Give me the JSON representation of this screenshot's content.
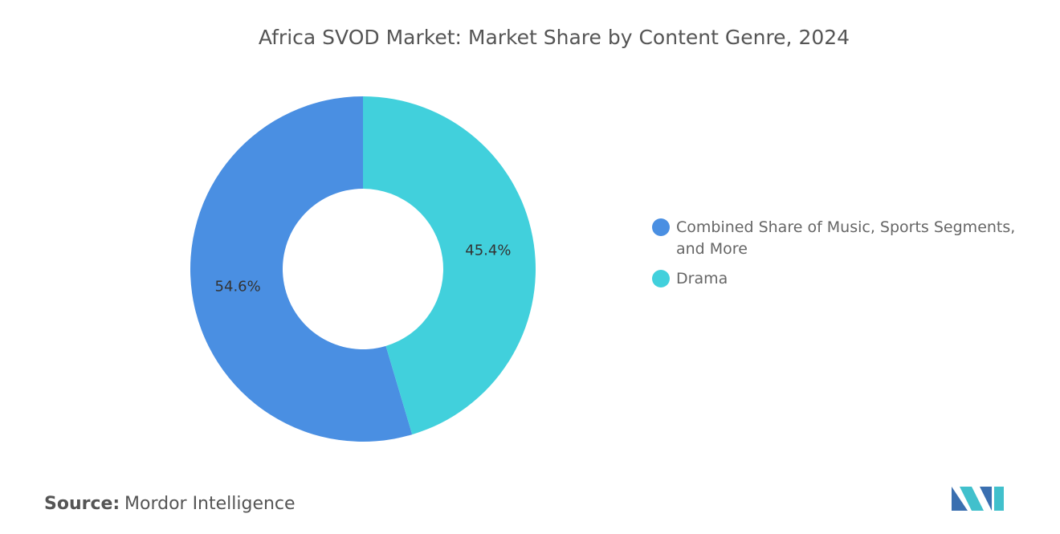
{
  "chart_data": {
    "type": "donut",
    "title": "Africa SVOD Market: Market Share by Content Genre, 2024",
    "categories": [
      "Combined Share of Music, Sports Segments, and More",
      "Drama"
    ],
    "values": [
      54.6,
      45.4
    ],
    "value_labels": [
      "54.6%",
      "45.4%"
    ],
    "colors": [
      "#4a8fe2",
      "#41d0dc"
    ],
    "legend": "right"
  },
  "footer": {
    "source_label": "Source:",
    "source": "Mordor Intelligence"
  }
}
